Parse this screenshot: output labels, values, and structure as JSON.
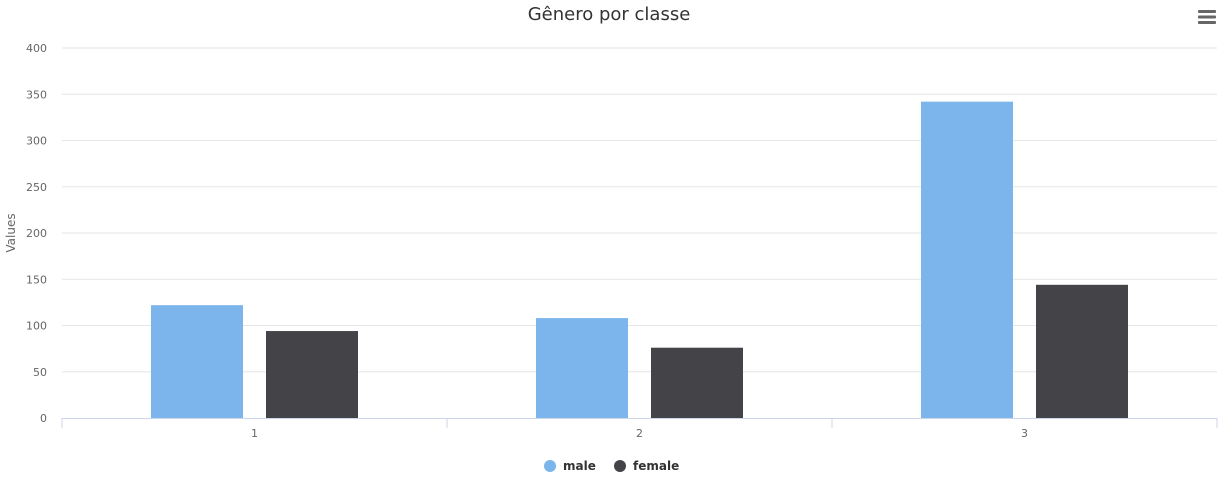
{
  "chart_data": {
    "type": "bar",
    "title": "Gênero por classe",
    "xlabel": "",
    "ylabel": "Values",
    "categories": [
      "1",
      "2",
      "3"
    ],
    "series": [
      {
        "name": "male",
        "color": "#7cb5ec",
        "values": [
          122,
          108,
          342
        ]
      },
      {
        "name": "female",
        "color": "#434348",
        "values": [
          94,
          76,
          144
        ]
      }
    ],
    "ylim": [
      0,
      400
    ],
    "yticks": [
      "0",
      "50",
      "100",
      "150",
      "200",
      "250",
      "300",
      "350",
      "400"
    ],
    "grid": true,
    "legend_position": "bottom-center"
  },
  "toolbar": {
    "menu_icon": "hamburger-menu-icon"
  }
}
